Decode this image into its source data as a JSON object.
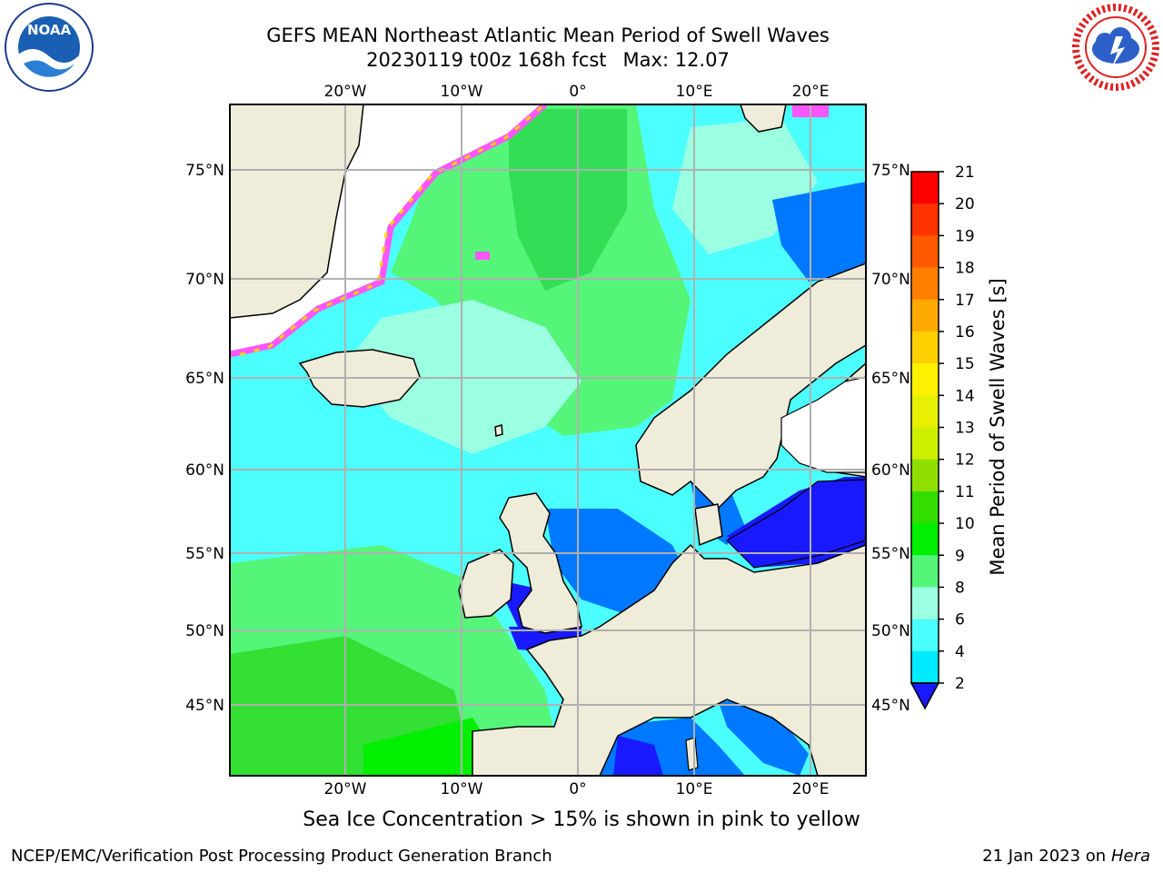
{
  "title_line1": "GEFS MEAN Northeast Atlantic Mean Period of Swell Waves",
  "title_run": "20230119 t00z 168h fcst",
  "title_max": "Max: 12.07",
  "map": {
    "lon_ticks": [
      "20°W",
      "10°W",
      "0°",
      "10°E",
      "20°E"
    ],
    "lat_ticks": [
      "75°N",
      "70°N",
      "65°N",
      "60°N",
      "55°N",
      "50°N",
      "45°N"
    ]
  },
  "colorbar": {
    "label": "Mean Period of Swell Waves [s]",
    "ticks": [
      "21",
      "20",
      "19",
      "18",
      "17",
      "16",
      "15",
      "14",
      "13",
      "12",
      "11",
      "10",
      "9",
      "8",
      "6",
      "4",
      "2"
    ],
    "colors": [
      "#ff0000",
      "#ff3300",
      "#ff5a00",
      "#ff8000",
      "#ffaa00",
      "#ffd000",
      "#fff000",
      "#e6f000",
      "#cdf000",
      "#8fe000",
      "#33dd00",
      "#00f000",
      "#55f57a",
      "#9bffe1",
      "#4cffff",
      "#00ebff",
      "#0078ff"
    ],
    "extend_color": "#1919ff"
  },
  "caption": "Sea Ice Concentration > 15% is shown in pink to yellow",
  "footer_left": "NCEP/EMC/Verification Post Processing Product Generation Branch",
  "footer_right_date": "21 Jan 2023 on",
  "footer_right_host": "Hera",
  "logos": {
    "left": "NOAA",
    "right": "NATIONAL WEATHER SERVICE"
  }
}
